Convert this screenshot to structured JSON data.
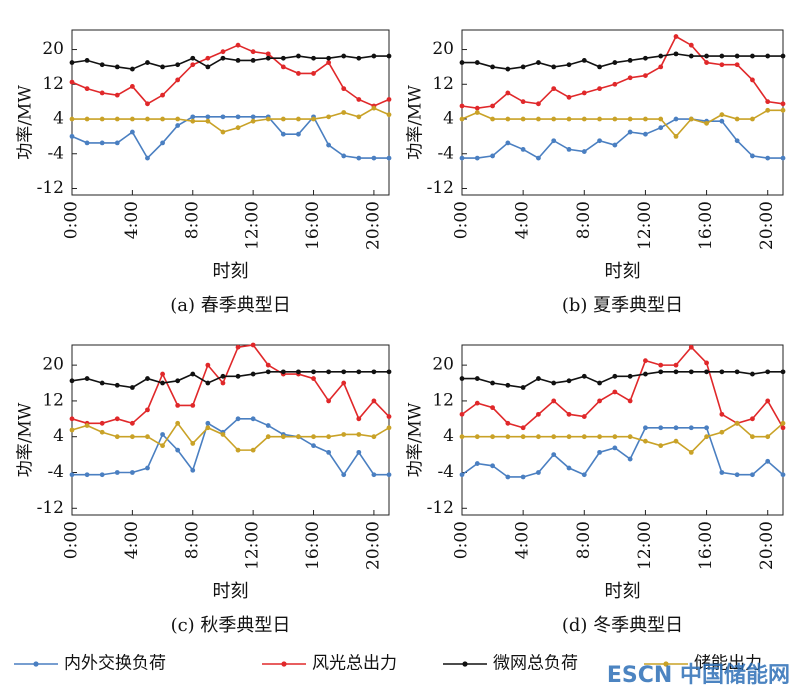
{
  "chart_data": [
    {
      "type": "line",
      "caption": "(a) 春季典型日",
      "xlabel": "时刻",
      "ylabel": "功率/MW",
      "x": [
        0,
        1,
        2,
        3,
        4,
        5,
        6,
        7,
        8,
        9,
        10,
        11,
        12,
        13,
        14,
        15,
        16,
        17,
        18,
        19,
        20,
        21
      ],
      "xlim": [
        0,
        21
      ],
      "ylim": [
        -13.5,
        24.5
      ],
      "xticks": [
        {
          "value": 0,
          "label": "0:00"
        },
        {
          "value": 4,
          "label": "4:00"
        },
        {
          "value": 8,
          "label": "8:00"
        },
        {
          "value": 12,
          "label": "12:00"
        },
        {
          "value": 16,
          "label": "16:00"
        },
        {
          "value": 20,
          "label": "20:00"
        }
      ],
      "yticks": [
        -12,
        -4,
        4,
        12,
        20
      ],
      "series": [
        {
          "name": "内外交换负荷",
          "color": "#4a7fc1",
          "values": [
            0,
            -1.5,
            -1.5,
            -1.5,
            1,
            -5,
            -1.5,
            2.5,
            4.5,
            4.5,
            4.5,
            4.5,
            4.5,
            4.5,
            0.5,
            0.5,
            4.5,
            -2,
            -4.5,
            -5,
            -5,
            -5
          ]
        },
        {
          "name": "风光总出力",
          "color": "#e0282a",
          "values": [
            12.5,
            11,
            10,
            9.5,
            11.5,
            7.5,
            9.5,
            13,
            16.5,
            18,
            19.5,
            21,
            19.5,
            19,
            16,
            14.5,
            14.5,
            17,
            11,
            8.5,
            7,
            8.5
          ]
        },
        {
          "name": "微网总负荷",
          "color": "#111111",
          "values": [
            17,
            17.5,
            16.5,
            16,
            15.5,
            17,
            16,
            16.5,
            18,
            16,
            18,
            17.5,
            17.5,
            18,
            18,
            18.5,
            18,
            18,
            18.5,
            18,
            18.5,
            18.5
          ]
        },
        {
          "name": "储能出力",
          "color": "#c9a227",
          "values": [
            4,
            4,
            4,
            4,
            4,
            4,
            4,
            4,
            3.5,
            3.5,
            1,
            2,
            3.5,
            4,
            4,
            4,
            4,
            4.5,
            5.5,
            4.5,
            6.5,
            5
          ]
        }
      ]
    },
    {
      "type": "line",
      "caption": "(b) 夏季典型日",
      "xlabel": "时刻",
      "ylabel": "功率/MW",
      "x": [
        0,
        1,
        2,
        3,
        4,
        5,
        6,
        7,
        8,
        9,
        10,
        11,
        12,
        13,
        14,
        15,
        16,
        17,
        18,
        19,
        20,
        21
      ],
      "xlim": [
        0,
        21
      ],
      "ylim": [
        -13.5,
        24.5
      ],
      "xticks": [
        {
          "value": 0,
          "label": "0:00"
        },
        {
          "value": 4,
          "label": "4:00"
        },
        {
          "value": 8,
          "label": "8:00"
        },
        {
          "value": 12,
          "label": "12:00"
        },
        {
          "value": 16,
          "label": "16:00"
        },
        {
          "value": 20,
          "label": "20:00"
        }
      ],
      "yticks": [
        -12,
        -4,
        4,
        12,
        20
      ],
      "series": [
        {
          "color": "#4a7fc1",
          "values": [
            -5,
            -5,
            -4.5,
            -1.5,
            -3,
            -5,
            -1,
            -3,
            -3.5,
            -1,
            -2,
            1,
            0.5,
            2,
            4,
            4,
            3.5,
            3.5,
            -1,
            -4.5,
            -5,
            -5
          ]
        },
        {
          "color": "#e0282a",
          "values": [
            7,
            6.5,
            7,
            10,
            8,
            7.5,
            11,
            9,
            10,
            11,
            12,
            13.5,
            14,
            16,
            23,
            21,
            17,
            16.5,
            16.5,
            13,
            8,
            7.5
          ]
        },
        {
          "color": "#111111",
          "values": [
            17,
            17,
            16,
            15.5,
            16,
            17,
            16,
            16.5,
            17.5,
            16,
            17,
            17.5,
            18,
            18.5,
            19,
            18.5,
            18.5,
            18.5,
            18.5,
            18.5,
            18.5,
            18.5
          ]
        },
        {
          "color": "#c9a227",
          "values": [
            4,
            5.5,
            4,
            4,
            4,
            4,
            4,
            4,
            4,
            4,
            4,
            4,
            4,
            4,
            0,
            4,
            3,
            5,
            4,
            4,
            6,
            6
          ]
        }
      ]
    },
    {
      "type": "line",
      "caption": "(c) 秋季典型日",
      "xlabel": "时刻",
      "ylabel": "功率/MW",
      "x": [
        0,
        1,
        2,
        3,
        4,
        5,
        6,
        7,
        8,
        9,
        10,
        11,
        12,
        13,
        14,
        15,
        16,
        17,
        18,
        19,
        20,
        21
      ],
      "xlim": [
        0,
        21
      ],
      "ylim": [
        -13.5,
        24.5
      ],
      "xticks": [
        {
          "value": 0,
          "label": "0:00"
        },
        {
          "value": 4,
          "label": "4:00"
        },
        {
          "value": 8,
          "label": "8:00"
        },
        {
          "value": 12,
          "label": "12:00"
        },
        {
          "value": 16,
          "label": "16:00"
        },
        {
          "value": 20,
          "label": "20:00"
        }
      ],
      "yticks": [
        -12,
        -4,
        4,
        12,
        20
      ],
      "series": [
        {
          "color": "#4a7fc1",
          "values": [
            -4.5,
            -4.5,
            -4.5,
            -4,
            -4,
            -3,
            4.5,
            1,
            -3.5,
            7,
            5,
            8,
            8,
            6.5,
            4.5,
            4,
            2,
            0.5,
            -4.5,
            0.5,
            -4.5,
            -4.5
          ]
        },
        {
          "color": "#e0282a",
          "values": [
            8,
            7,
            7,
            8,
            7,
            10,
            18,
            11,
            11,
            20,
            16,
            24,
            24.5,
            20,
            18,
            18,
            17,
            12,
            16,
            8,
            12,
            8.5
          ]
        },
        {
          "color": "#111111",
          "values": [
            16.5,
            17,
            16,
            15.5,
            15,
            17,
            16,
            16.5,
            18,
            16,
            17.5,
            17.5,
            18,
            18.5,
            18.5,
            18.5,
            18.5,
            18.5,
            18.5,
            18.5,
            18.5,
            18.5
          ]
        },
        {
          "color": "#c9a227",
          "values": [
            5.5,
            6.5,
            5,
            4,
            4,
            4,
            2,
            7,
            2.5,
            6,
            4.5,
            1,
            1,
            4,
            4,
            4,
            4,
            4,
            4.5,
            4.5,
            4,
            6
          ]
        }
      ]
    },
    {
      "type": "line",
      "caption": "(d) 冬季典型日",
      "xlabel": "时刻",
      "ylabel": "功率/MW",
      "x": [
        0,
        1,
        2,
        3,
        4,
        5,
        6,
        7,
        8,
        9,
        10,
        11,
        12,
        13,
        14,
        15,
        16,
        17,
        18,
        19,
        20,
        21
      ],
      "xlim": [
        0,
        21
      ],
      "ylim": [
        -13.5,
        24.5
      ],
      "xticks": [
        {
          "value": 0,
          "label": "0:00"
        },
        {
          "value": 4,
          "label": "4:00"
        },
        {
          "value": 8,
          "label": "8:00"
        },
        {
          "value": 12,
          "label": "12:00"
        },
        {
          "value": 16,
          "label": "16:00"
        },
        {
          "value": 20,
          "label": "20:00"
        }
      ],
      "yticks": [
        -12,
        -4,
        4,
        12,
        20
      ],
      "series": [
        {
          "color": "#4a7fc1",
          "values": [
            -4.5,
            -2,
            -2.5,
            -5,
            -5,
            -4,
            0,
            -3,
            -4.5,
            0.5,
            1.5,
            -1,
            6,
            6,
            6,
            6,
            6,
            -4,
            -4.5,
            -4.5,
            -1.5,
            -4.5
          ]
        },
        {
          "color": "#e0282a",
          "values": [
            9,
            11.5,
            10.5,
            7,
            6,
            9,
            12,
            9,
            8.5,
            12,
            14,
            12,
            21,
            20,
            20,
            24,
            20.5,
            9,
            7,
            8,
            12,
            6
          ]
        },
        {
          "color": "#111111",
          "values": [
            17,
            17,
            16,
            15.5,
            15,
            17,
            16,
            16.5,
            17.5,
            16,
            17.5,
            17.5,
            18,
            18.5,
            18.5,
            18.5,
            18.5,
            18.5,
            18.5,
            18,
            18.5,
            18.5
          ]
        },
        {
          "color": "#c9a227",
          "values": [
            4,
            4,
            4,
            4,
            4,
            4,
            4,
            4,
            4,
            4,
            4,
            4,
            3,
            2,
            3,
            0.5,
            4,
            5,
            7,
            4,
            4,
            7
          ]
        }
      ]
    }
  ],
  "watermark": "ESCN 中国储能网"
}
